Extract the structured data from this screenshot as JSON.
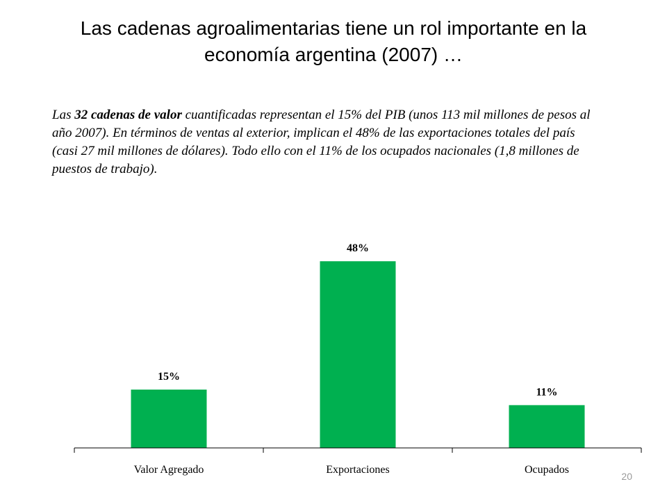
{
  "slide": {
    "title_line1": "Las cadenas agroalimentarias tiene un rol importante en la",
    "title_line2": "economía argentina (2007) …",
    "intro": {
      "lead": "Las ",
      "bold": "32 cadenas de valor",
      "rest": " cuantificadas representan el 15% del PIB (unos 113 mil millones de pesos al año 2007). En términos de ventas al exterior, implican el 48% de las exportaciones totales del país (casi 27 mil millones de dólares). Todo ello con el 11% de los ocupados nacionales (1,8 millones de puestos de trabajo)."
    },
    "page_number": "20"
  },
  "chart_data": {
    "type": "bar",
    "categories": [
      "Valor Agregado",
      "Exportaciones",
      "Ocupados"
    ],
    "values": [
      15,
      48,
      11
    ],
    "data_labels": [
      "15%",
      "48%",
      "11%"
    ],
    "bar_color": "#00b050",
    "ylim": [
      0,
      50
    ],
    "axis_visible": false,
    "grid": false,
    "title": "",
    "xlabel": "",
    "ylabel": ""
  }
}
